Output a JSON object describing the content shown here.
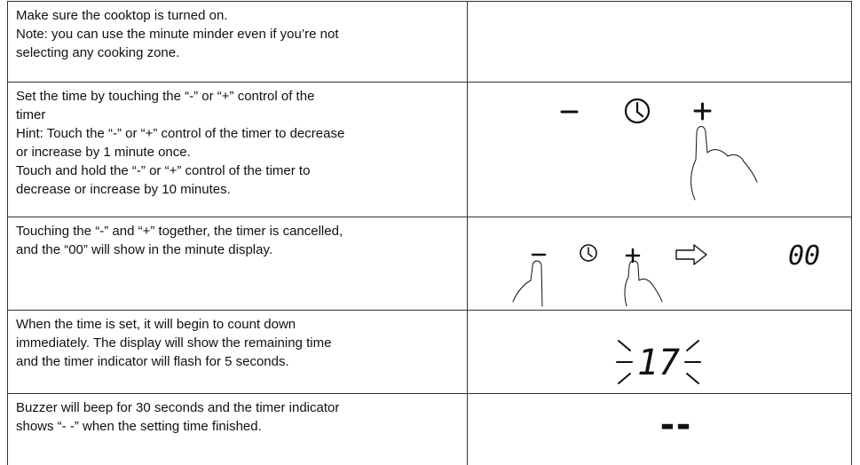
{
  "table": {
    "rows": [
      {
        "lines": [
          "Make sure the cooktop is turned on.",
          "Note: you can use the minute minder even if you’re not",
          "selecting any cooking zone."
        ]
      },
      {
        "lines": [
          "Set the time by touching the “-” or “+” control of the",
          "timer",
          "Hint: Touch the “-” or “+” control of the timer to decrease",
          "or increase by 1 minute once.",
          "Touch and hold the “-” or “+” control of the timer to",
          "decrease or increase by 10 minutes."
        ]
      },
      {
        "lines": [
          "Touching the “-” and “+” together, the timer is cancelled,",
          "and the “00” will show in the minute display."
        ],
        "display": "00"
      },
      {
        "lines": [
          "When the time is set, it will begin to count down",
          "immediately. The display will show the remaining time",
          "and the timer indicator will flash for 5 seconds."
        ],
        "display": "17"
      },
      {
        "lines": [
          "Buzzer will beep for 30 seconds and the timer indicator",
          "shows “- -” when the setting time finished."
        ],
        "display": "--"
      }
    ]
  }
}
